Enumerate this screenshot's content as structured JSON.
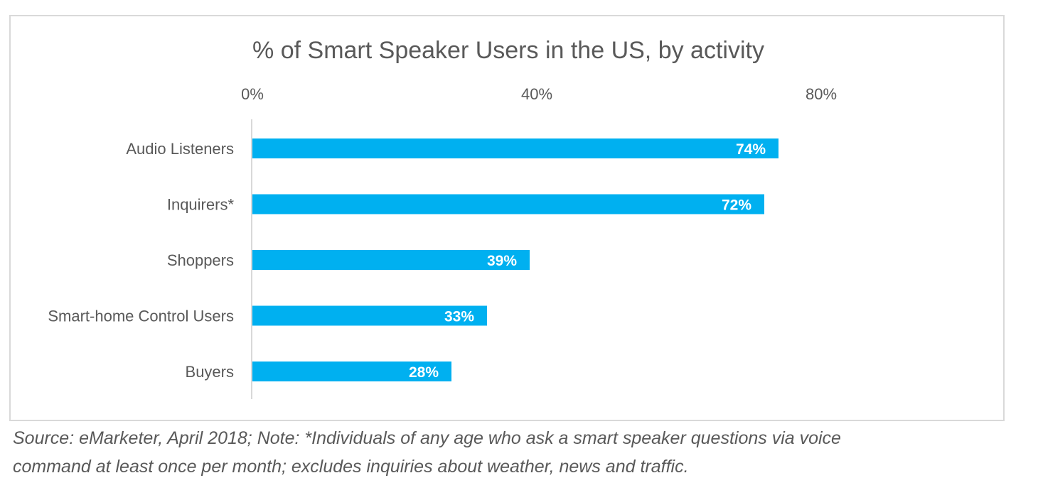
{
  "chart_data": {
    "type": "bar",
    "orientation": "horizontal",
    "title": "% of Smart Speaker Users in the US, by activity",
    "categories": [
      "Audio Listeners",
      "Inquirers*",
      "Shoppers",
      "Smart-home Control Users",
      "Buyers"
    ],
    "values": [
      74,
      72,
      39,
      33,
      28
    ],
    "data_labels": [
      "74%",
      "72%",
      "39%",
      "33%",
      "28%"
    ],
    "xlim": [
      0,
      100
    ],
    "xticks": [
      0,
      40,
      80
    ],
    "xtick_labels": [
      "0%",
      "40%",
      "80%"
    ],
    "xaxis_position": "top",
    "xlabel": "",
    "ylabel": "",
    "grid": false,
    "legend": "none",
    "bar_color": "#00B0F0",
    "label_color": "#ffffff"
  },
  "caption": {
    "line1": "Source: eMarketer, April 2018; Note: *Individuals of any age who ask a smart speaker questions via voice",
    "line2": "command at least once per month; excludes inquiries about weather, news and traffic."
  }
}
